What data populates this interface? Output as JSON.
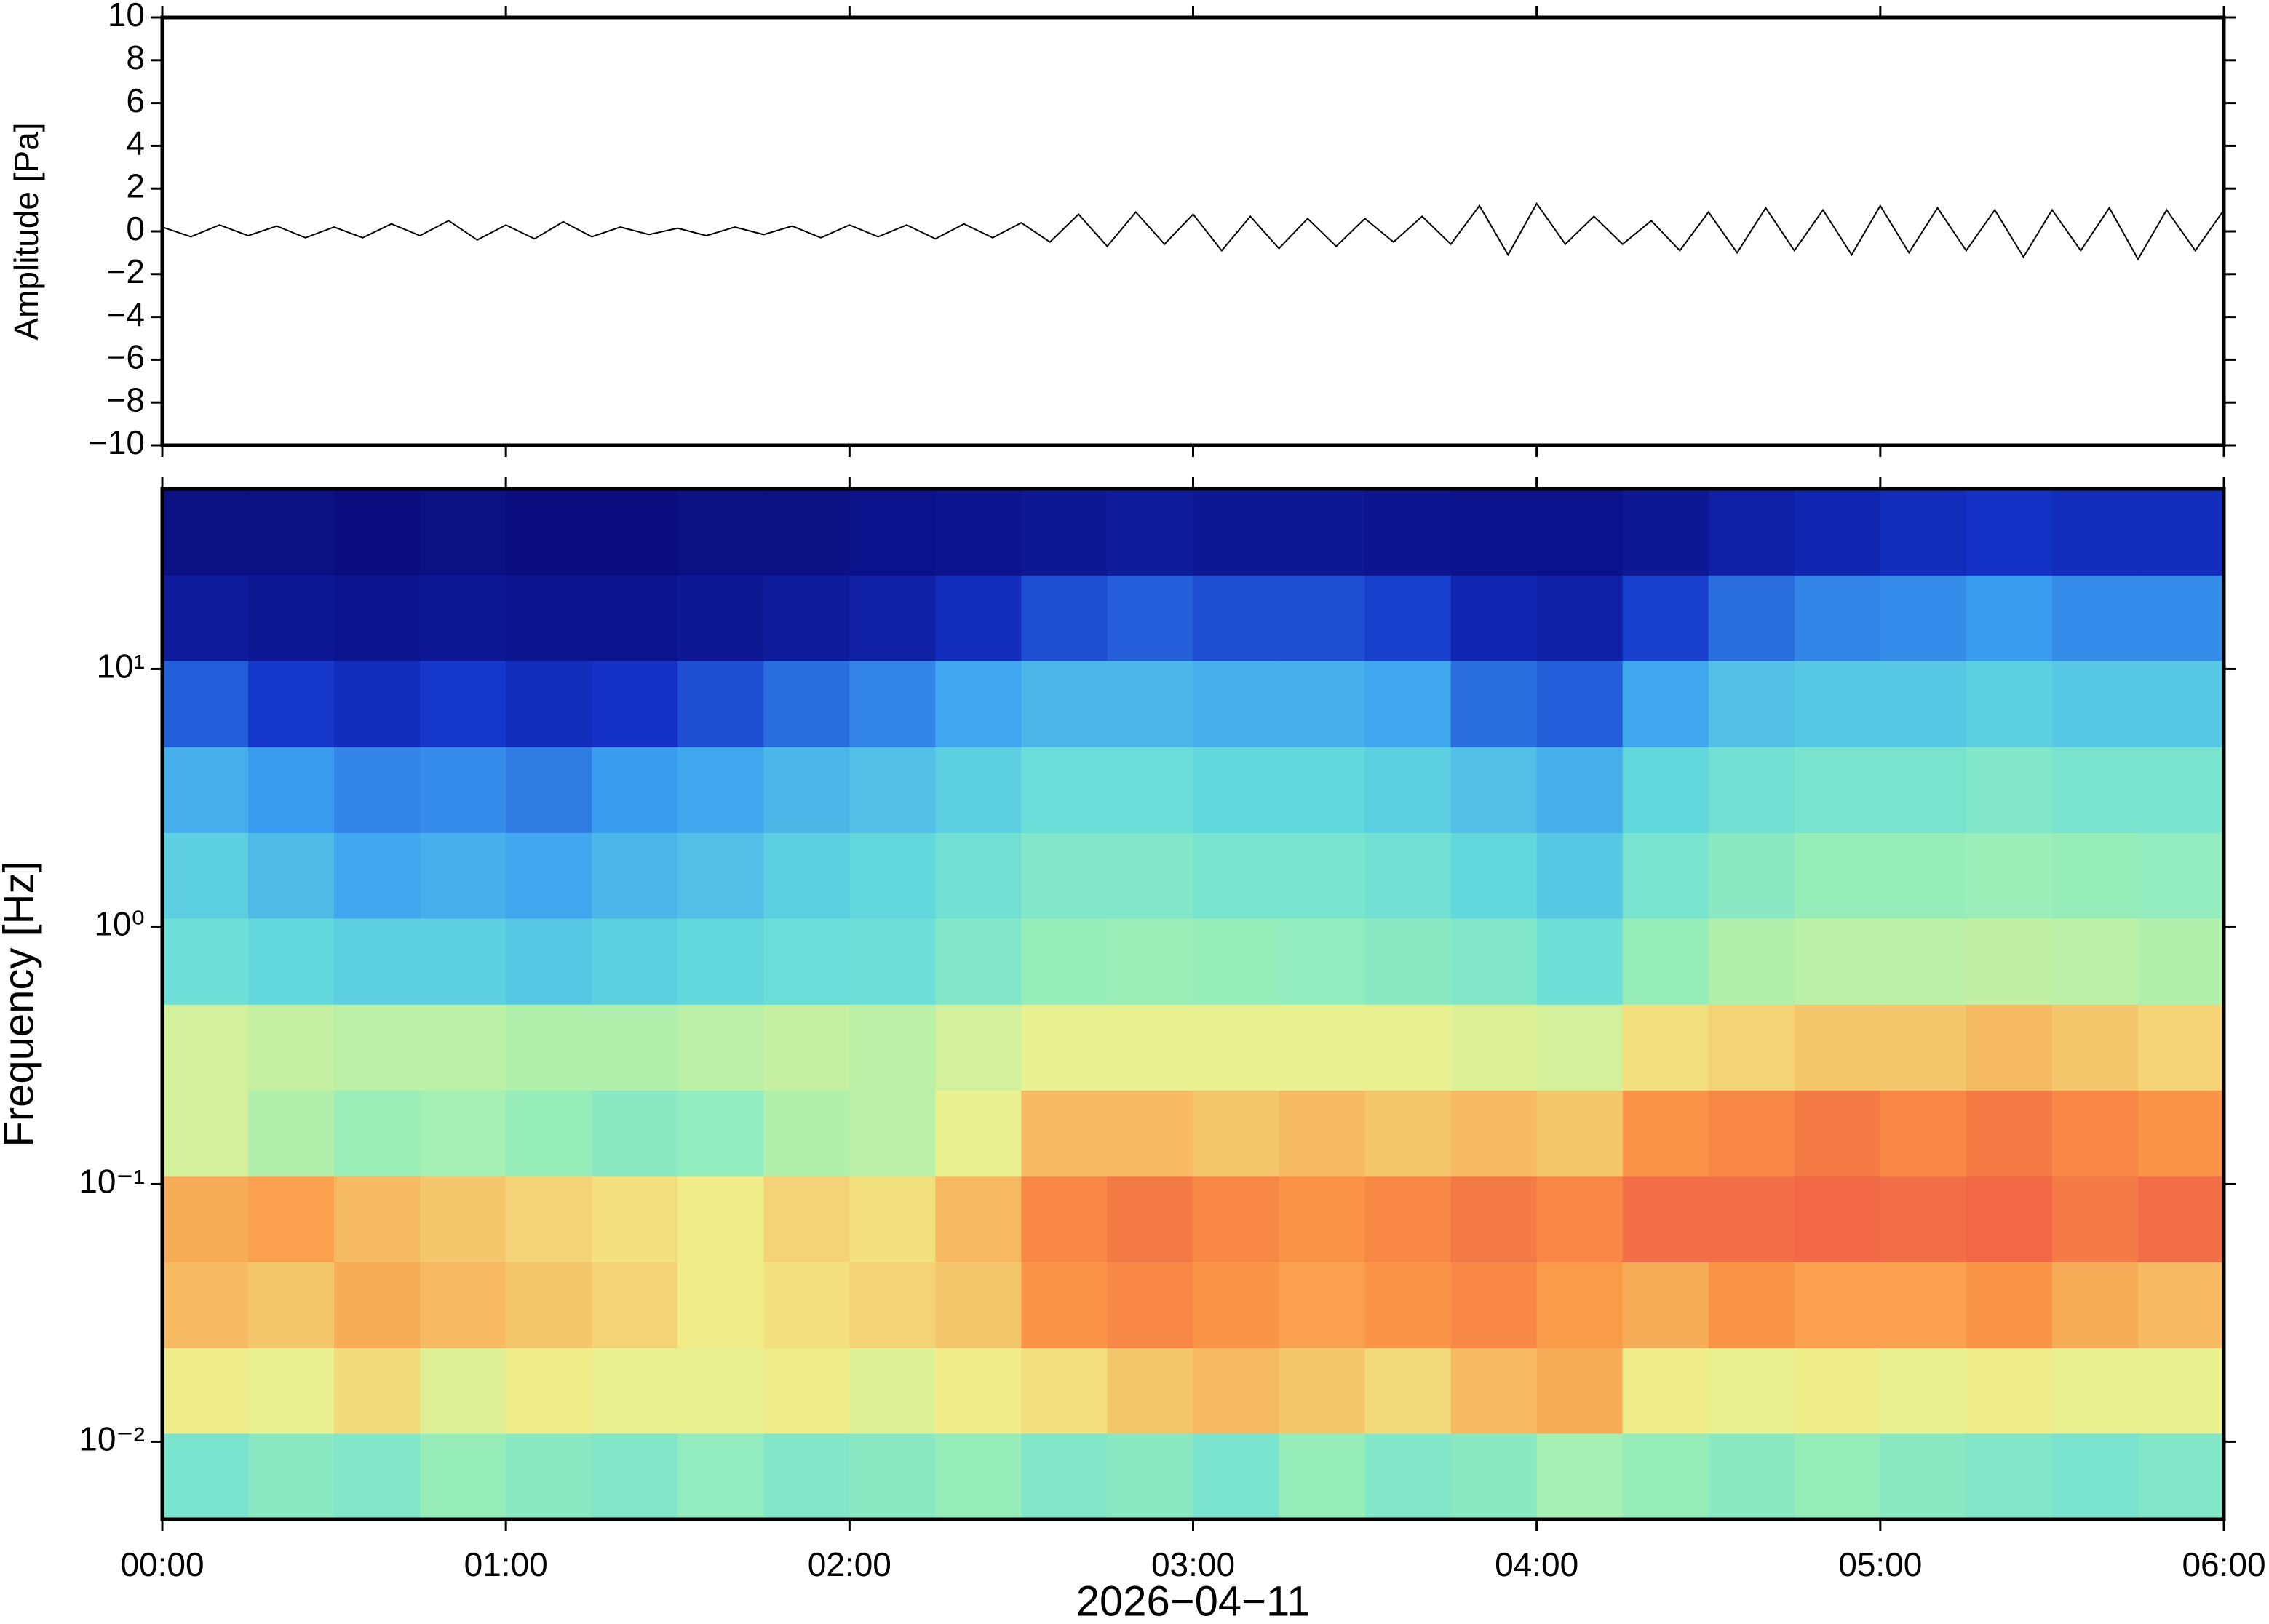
{
  "chart_data": [
    {
      "type": "line",
      "ylabel": "Amplitude [Pa]",
      "color": "#000000",
      "xlim": [
        0,
        360
      ],
      "xticks": [
        0,
        60,
        120,
        180,
        240,
        300,
        360
      ],
      "ylim": [
        -10,
        10
      ],
      "yticks": [
        {
          "value": -10,
          "label": "−10"
        },
        {
          "value": -8,
          "label": "−8"
        },
        {
          "value": -6,
          "label": "−6"
        },
        {
          "value": -4,
          "label": "−4"
        },
        {
          "value": -2,
          "label": "−2"
        },
        0,
        2,
        4,
        6,
        8,
        10
      ],
      "x": [
        0,
        5,
        10,
        15,
        20,
        25,
        30,
        35,
        40,
        45,
        50,
        55,
        60,
        65,
        70,
        75,
        80,
        85,
        90,
        95,
        100,
        105,
        110,
        115,
        120,
        125,
        130,
        135,
        140,
        145,
        150,
        155,
        160,
        165,
        170,
        175,
        180,
        185,
        190,
        195,
        200,
        205,
        210,
        215,
        220,
        225,
        230,
        235,
        240,
        245,
        250,
        255,
        260,
        265,
        270,
        275,
        280,
        285,
        290,
        295,
        300,
        305,
        310,
        315,
        320,
        325,
        330,
        335,
        340,
        345,
        350,
        355,
        360
      ],
      "values": [
        0.2,
        -0.25,
        0.3,
        -0.2,
        0.25,
        -0.3,
        0.2,
        -0.3,
        0.35,
        -0.2,
        0.5,
        -0.4,
        0.3,
        -0.35,
        0.45,
        -0.25,
        0.2,
        -0.15,
        0.15,
        -0.2,
        0.2,
        -0.15,
        0.25,
        -0.3,
        0.3,
        -0.25,
        0.3,
        -0.35,
        0.35,
        -0.3,
        0.4,
        -0.5,
        0.8,
        -0.7,
        0.9,
        -0.6,
        0.8,
        -0.9,
        0.7,
        -0.8,
        0.6,
        -0.7,
        0.6,
        -0.5,
        0.7,
        -0.6,
        1.2,
        -1.1,
        1.3,
        -0.6,
        0.7,
        -0.6,
        0.5,
        -0.9,
        0.9,
        -1.0,
        1.1,
        -0.9,
        1.0,
        -1.1,
        1.2,
        -1.0,
        1.1,
        -0.9,
        1.0,
        -1.2,
        1.0,
        -0.9,
        1.1,
        -1.3,
        1.0,
        -0.9,
        1.0
      ]
    },
    {
      "type": "heatmap",
      "ylabel": "Frequency [Hz]",
      "xlabel": "2026−04−11",
      "xlim": [
        0,
        360
      ],
      "xticks": [
        {
          "value": 0,
          "label": "00:00"
        },
        {
          "value": 60,
          "label": "01:00"
        },
        {
          "value": 120,
          "label": "02:00"
        },
        {
          "value": 180,
          "label": "03:00"
        },
        {
          "value": 240,
          "label": "04:00"
        },
        {
          "value": 300,
          "label": "05:00"
        },
        {
          "value": 360,
          "label": "06:00"
        }
      ],
      "log_y": true,
      "ylim": [
        0.005,
        50
      ],
      "yticks": [
        {
          "value": 0.01,
          "label": "10⁻²"
        },
        {
          "value": 0.1,
          "label": "10⁻¹"
        },
        {
          "value": 1,
          "label": "10⁰"
        },
        {
          "value": 10,
          "label": "10¹"
        }
      ],
      "zlim": [
        0,
        1
      ],
      "colormap": [
        "#0a0a78",
        "#1432c8",
        "#3ca0f0",
        "#64dcdc",
        "#a0f0b4",
        "#f0f08c",
        "#fa9646",
        "#e63c46"
      ],
      "x": [
        0,
        15,
        30,
        45,
        60,
        75,
        90,
        105,
        120,
        135,
        150,
        165,
        180,
        195,
        210,
        225,
        240,
        255,
        270,
        285,
        300,
        315,
        330,
        345
      ],
      "y_edges": [
        0.005,
        0.0108,
        0.0232,
        0.05,
        0.108,
        0.232,
        0.5,
        1.08,
        2.32,
        5,
        10.8,
        23.2,
        50
      ],
      "z": [
        [
          0.48,
          0.52,
          0.5,
          0.55,
          0.52,
          0.5,
          0.54,
          0.5,
          0.52,
          0.55,
          0.5,
          0.52,
          0.48,
          0.55,
          0.5,
          0.52,
          0.58,
          0.55,
          0.52,
          0.55,
          0.52,
          0.5,
          0.48,
          0.5
        ],
        [
          0.72,
          0.7,
          0.75,
          0.68,
          0.72,
          0.7,
          0.7,
          0.72,
          0.68,
          0.72,
          0.74,
          0.78,
          0.8,
          0.78,
          0.75,
          0.8,
          0.82,
          0.72,
          0.7,
          0.72,
          0.7,
          0.72,
          0.7,
          0.7
        ],
        [
          0.8,
          0.78,
          0.82,
          0.8,
          0.78,
          0.76,
          0.72,
          0.74,
          0.76,
          0.78,
          0.86,
          0.88,
          0.86,
          0.84,
          0.86,
          0.88,
          0.85,
          0.82,
          0.86,
          0.84,
          0.84,
          0.86,
          0.82,
          0.8
        ],
        [
          0.82,
          0.84,
          0.8,
          0.78,
          0.76,
          0.74,
          0.72,
          0.76,
          0.74,
          0.8,
          0.88,
          0.9,
          0.88,
          0.86,
          0.88,
          0.9,
          0.88,
          0.92,
          0.92,
          0.93,
          0.92,
          0.93,
          0.9,
          0.92
        ],
        [
          0.66,
          0.6,
          0.56,
          0.58,
          0.55,
          0.52,
          0.54,
          0.6,
          0.62,
          0.7,
          0.8,
          0.8,
          0.78,
          0.8,
          0.78,
          0.8,
          0.78,
          0.86,
          0.88,
          0.9,
          0.88,
          0.9,
          0.88,
          0.86
        ],
        [
          0.66,
          0.64,
          0.62,
          0.62,
          0.6,
          0.6,
          0.62,
          0.64,
          0.62,
          0.66,
          0.7,
          0.7,
          0.7,
          0.7,
          0.7,
          0.68,
          0.66,
          0.74,
          0.76,
          0.78,
          0.78,
          0.8,
          0.78,
          0.76
        ],
        [
          0.45,
          0.42,
          0.4,
          0.4,
          0.38,
          0.4,
          0.42,
          0.44,
          0.45,
          0.5,
          0.55,
          0.56,
          0.55,
          0.54,
          0.52,
          0.5,
          0.45,
          0.55,
          0.6,
          0.62,
          0.62,
          0.63,
          0.62,
          0.6
        ],
        [
          0.4,
          0.35,
          0.3,
          0.32,
          0.3,
          0.34,
          0.36,
          0.4,
          0.42,
          0.46,
          0.5,
          0.5,
          0.48,
          0.48,
          0.46,
          0.42,
          0.38,
          0.48,
          0.52,
          0.55,
          0.55,
          0.56,
          0.55,
          0.54
        ],
        [
          0.32,
          0.28,
          0.25,
          0.26,
          0.24,
          0.28,
          0.3,
          0.34,
          0.36,
          0.4,
          0.44,
          0.44,
          0.42,
          0.42,
          0.4,
          0.36,
          0.32,
          0.42,
          0.46,
          0.48,
          0.48,
          0.5,
          0.48,
          0.48
        ],
        [
          0.2,
          0.15,
          0.12,
          0.15,
          0.12,
          0.14,
          0.18,
          0.22,
          0.25,
          0.3,
          0.34,
          0.34,
          0.32,
          0.32,
          0.3,
          0.22,
          0.2,
          0.3,
          0.36,
          0.38,
          0.38,
          0.4,
          0.38,
          0.38
        ],
        [
          0.06,
          0.05,
          0.04,
          0.05,
          0.04,
          0.04,
          0.05,
          0.06,
          0.08,
          0.12,
          0.18,
          0.2,
          0.18,
          0.18,
          0.16,
          0.1,
          0.08,
          0.16,
          0.22,
          0.25,
          0.26,
          0.28,
          0.26,
          0.26
        ],
        [
          0.02,
          0.02,
          0.01,
          0.02,
          0.01,
          0.01,
          0.02,
          0.02,
          0.03,
          0.04,
          0.05,
          0.06,
          0.05,
          0.05,
          0.04,
          0.03,
          0.03,
          0.05,
          0.08,
          0.1,
          0.12,
          0.14,
          0.12,
          0.12
        ]
      ]
    }
  ]
}
